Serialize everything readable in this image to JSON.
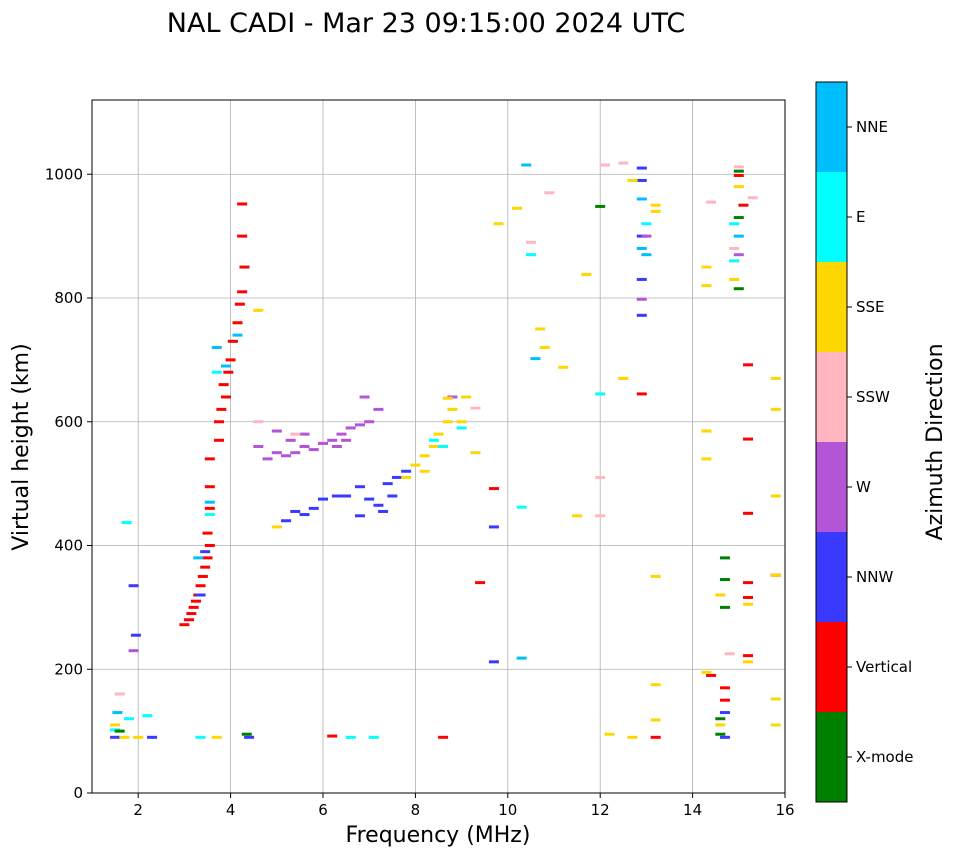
{
  "chart_data": {
    "type": "scatter",
    "title": "NAL CADI - Mar 23 09:15:00 2024 UTC",
    "xlabel": "Frequency (MHz)",
    "ylabel": "Virtual height (km)",
    "xlim": [
      1,
      16
    ],
    "ylim": [
      0,
      1120
    ],
    "xticks": [
      2,
      4,
      6,
      8,
      10,
      12,
      14,
      16
    ],
    "yticks": [
      0,
      200,
      400,
      600,
      800,
      1000
    ],
    "grid": true,
    "colorbar": {
      "title": "Azimuth Direction",
      "categories": [
        {
          "name": "X-mode",
          "color": "#008000"
        },
        {
          "name": "Vertical",
          "color": "#ff0000"
        },
        {
          "name": "NNW",
          "color": "#3a3aff"
        },
        {
          "name": "W",
          "color": "#b455d8"
        },
        {
          "name": "SSW",
          "color": "#ffb6c1"
        },
        {
          "name": "SSE",
          "color": "#ffd700"
        },
        {
          "name": "E",
          "color": "#00ffff"
        },
        {
          "name": "NNE",
          "color": "#00bfff"
        }
      ]
    },
    "series": [
      {
        "name": "Vertical",
        "points": [
          [
            3.0,
            272
          ],
          [
            3.1,
            280
          ],
          [
            3.15,
            290
          ],
          [
            3.2,
            300
          ],
          [
            3.25,
            310
          ],
          [
            3.3,
            320
          ],
          [
            3.35,
            335
          ],
          [
            3.4,
            350
          ],
          [
            3.45,
            365
          ],
          [
            3.5,
            380
          ],
          [
            3.55,
            400
          ],
          [
            3.5,
            420
          ],
          [
            3.55,
            460
          ],
          [
            3.55,
            495
          ],
          [
            3.55,
            540
          ],
          [
            3.75,
            570
          ],
          [
            3.75,
            600
          ],
          [
            3.8,
            620
          ],
          [
            3.9,
            640
          ],
          [
            3.85,
            660
          ],
          [
            3.95,
            680
          ],
          [
            4.0,
            700
          ],
          [
            4.05,
            730
          ],
          [
            4.15,
            760
          ],
          [
            4.2,
            790
          ],
          [
            4.25,
            810
          ],
          [
            4.3,
            850
          ],
          [
            4.25,
            900
          ],
          [
            4.25,
            952
          ],
          [
            9.4,
            340
          ],
          [
            9.7,
            492
          ],
          [
            8.6,
            90
          ],
          [
            6.2,
            92
          ],
          [
            13.2,
            90
          ],
          [
            15.2,
            692
          ],
          [
            15.2,
            572
          ],
          [
            15.2,
            452
          ],
          [
            15.2,
            340
          ],
          [
            15.2,
            316
          ],
          [
            15.2,
            222
          ],
          [
            15.8,
            352
          ],
          [
            14.4,
            190
          ],
          [
            14.7,
            150
          ],
          [
            14.7,
            170
          ],
          [
            15.0,
            998
          ],
          [
            15.1,
            950
          ],
          [
            12.9,
            645
          ]
        ]
      },
      {
        "name": "NNW",
        "points": [
          [
            1.5,
            90
          ],
          [
            1.9,
            335
          ],
          [
            1.95,
            255
          ],
          [
            2.3,
            90
          ],
          [
            3.35,
            320
          ],
          [
            3.45,
            390
          ],
          [
            4.4,
            90
          ],
          [
            5.2,
            440
          ],
          [
            5.4,
            455
          ],
          [
            5.6,
            450
          ],
          [
            5.8,
            460
          ],
          [
            6.0,
            475
          ],
          [
            6.3,
            480
          ],
          [
            6.5,
            480
          ],
          [
            6.8,
            495
          ],
          [
            7.0,
            475
          ],
          [
            7.2,
            465
          ],
          [
            7.4,
            500
          ],
          [
            7.5,
            480
          ],
          [
            7.6,
            510
          ],
          [
            7.8,
            520
          ],
          [
            7.3,
            455
          ],
          [
            6.8,
            448
          ],
          [
            9.7,
            212
          ],
          [
            9.7,
            430
          ],
          [
            12.9,
            1010
          ],
          [
            12.9,
            990
          ],
          [
            12.9,
            830
          ],
          [
            12.9,
            772
          ],
          [
            14.7,
            130
          ],
          [
            14.7,
            90
          ],
          [
            12.9,
            900
          ]
        ]
      },
      {
        "name": "W",
        "points": [
          [
            1.9,
            230
          ],
          [
            4.6,
            560
          ],
          [
            5.0,
            550
          ],
          [
            5.2,
            545
          ],
          [
            5.4,
            550
          ],
          [
            5.6,
            560
          ],
          [
            5.8,
            555
          ],
          [
            6.0,
            565
          ],
          [
            6.2,
            570
          ],
          [
            6.4,
            580
          ],
          [
            6.6,
            590
          ],
          [
            6.8,
            595
          ],
          [
            7.0,
            600
          ],
          [
            6.5,
            570
          ],
          [
            6.3,
            560
          ],
          [
            5.6,
            580
          ],
          [
            5.3,
            570
          ],
          [
            4.8,
            540
          ],
          [
            5.0,
            585
          ],
          [
            6.9,
            640
          ],
          [
            7.2,
            620
          ],
          [
            8.8,
            640
          ],
          [
            12.9,
            798
          ],
          [
            13.0,
            900
          ],
          [
            15.0,
            870
          ]
        ]
      },
      {
        "name": "SSW",
        "points": [
          [
            1.6,
            160
          ],
          [
            10.5,
            890
          ],
          [
            10.9,
            970
          ],
          [
            12.1,
            1015
          ],
          [
            12.5,
            1018
          ],
          [
            14.4,
            955
          ],
          [
            15.0,
            1012
          ],
          [
            14.9,
            880
          ],
          [
            15.3,
            962
          ],
          [
            12.0,
            510
          ],
          [
            12.0,
            448
          ],
          [
            9.3,
            622
          ],
          [
            4.6,
            600
          ],
          [
            5.4,
            580
          ],
          [
            14.8,
            225
          ]
        ]
      },
      {
        "name": "SSE",
        "points": [
          [
            1.5,
            110
          ],
          [
            1.7,
            90
          ],
          [
            2.0,
            90
          ],
          [
            3.7,
            90
          ],
          [
            4.6,
            780
          ],
          [
            5.0,
            430
          ],
          [
            7.8,
            510
          ],
          [
            8.0,
            530
          ],
          [
            8.2,
            545
          ],
          [
            8.4,
            560
          ],
          [
            8.5,
            580
          ],
          [
            8.7,
            600
          ],
          [
            8.8,
            620
          ],
          [
            8.7,
            638
          ],
          [
            9.0,
            600
          ],
          [
            9.1,
            640
          ],
          [
            8.2,
            520
          ],
          [
            9.3,
            550
          ],
          [
            9.8,
            920
          ],
          [
            10.2,
            945
          ],
          [
            10.7,
            750
          ],
          [
            10.8,
            720
          ],
          [
            11.2,
            688
          ],
          [
            11.5,
            448
          ],
          [
            11.7,
            838
          ],
          [
            12.2,
            95
          ],
          [
            12.7,
            90
          ],
          [
            12.5,
            670
          ],
          [
            12.7,
            990
          ],
          [
            13.2,
            350
          ],
          [
            13.2,
            175
          ],
          [
            13.2,
            118
          ],
          [
            13.2,
            950
          ],
          [
            13.2,
            940
          ],
          [
            14.3,
            850
          ],
          [
            14.3,
            820
          ],
          [
            14.3,
            540
          ],
          [
            14.3,
            585
          ],
          [
            14.3,
            195
          ],
          [
            15.2,
            212
          ],
          [
            15.2,
            305
          ],
          [
            15.8,
            480
          ],
          [
            15.8,
            352
          ],
          [
            15.8,
            152
          ],
          [
            15.8,
            110
          ],
          [
            15.8,
            670
          ],
          [
            15.8,
            620
          ],
          [
            15.0,
            980
          ],
          [
            14.9,
            830
          ],
          [
            14.6,
            110
          ],
          [
            14.6,
            320
          ]
        ]
      },
      {
        "name": "E",
        "points": [
          [
            1.5,
            102
          ],
          [
            1.8,
            120
          ],
          [
            2.2,
            125
          ],
          [
            3.35,
            90
          ],
          [
            3.55,
            450
          ],
          [
            3.7,
            680
          ],
          [
            6.6,
            90
          ],
          [
            7.1,
            90
          ],
          [
            8.4,
            570
          ],
          [
            8.6,
            560
          ],
          [
            9.0,
            590
          ],
          [
            10.3,
            462
          ],
          [
            12.0,
            645
          ],
          [
            13.0,
            920
          ],
          [
            14.9,
            860
          ],
          [
            14.9,
            920
          ],
          [
            10.5,
            870
          ],
          [
            1.75,
            437
          ]
        ]
      },
      {
        "name": "NNE",
        "points": [
          [
            1.55,
            130
          ],
          [
            3.3,
            380
          ],
          [
            3.55,
            470
          ],
          [
            3.7,
            720
          ],
          [
            3.9,
            690
          ],
          [
            4.15,
            740
          ],
          [
            10.4,
            1015
          ],
          [
            10.6,
            702
          ],
          [
            10.3,
            218
          ],
          [
            12.9,
            880
          ],
          [
            12.9,
            960
          ],
          [
            13.0,
            870
          ],
          [
            15.0,
            900
          ]
        ]
      },
      {
        "name": "X-mode",
        "points": [
          [
            1.6,
            100
          ],
          [
            4.35,
            95
          ],
          [
            12.0,
            948
          ],
          [
            14.7,
            380
          ],
          [
            14.7,
            345
          ],
          [
            14.7,
            300
          ],
          [
            14.6,
            95
          ],
          [
            14.6,
            120
          ],
          [
            15.0,
            815
          ],
          [
            15.0,
            930
          ],
          [
            15.0,
            1005
          ]
        ]
      }
    ]
  }
}
